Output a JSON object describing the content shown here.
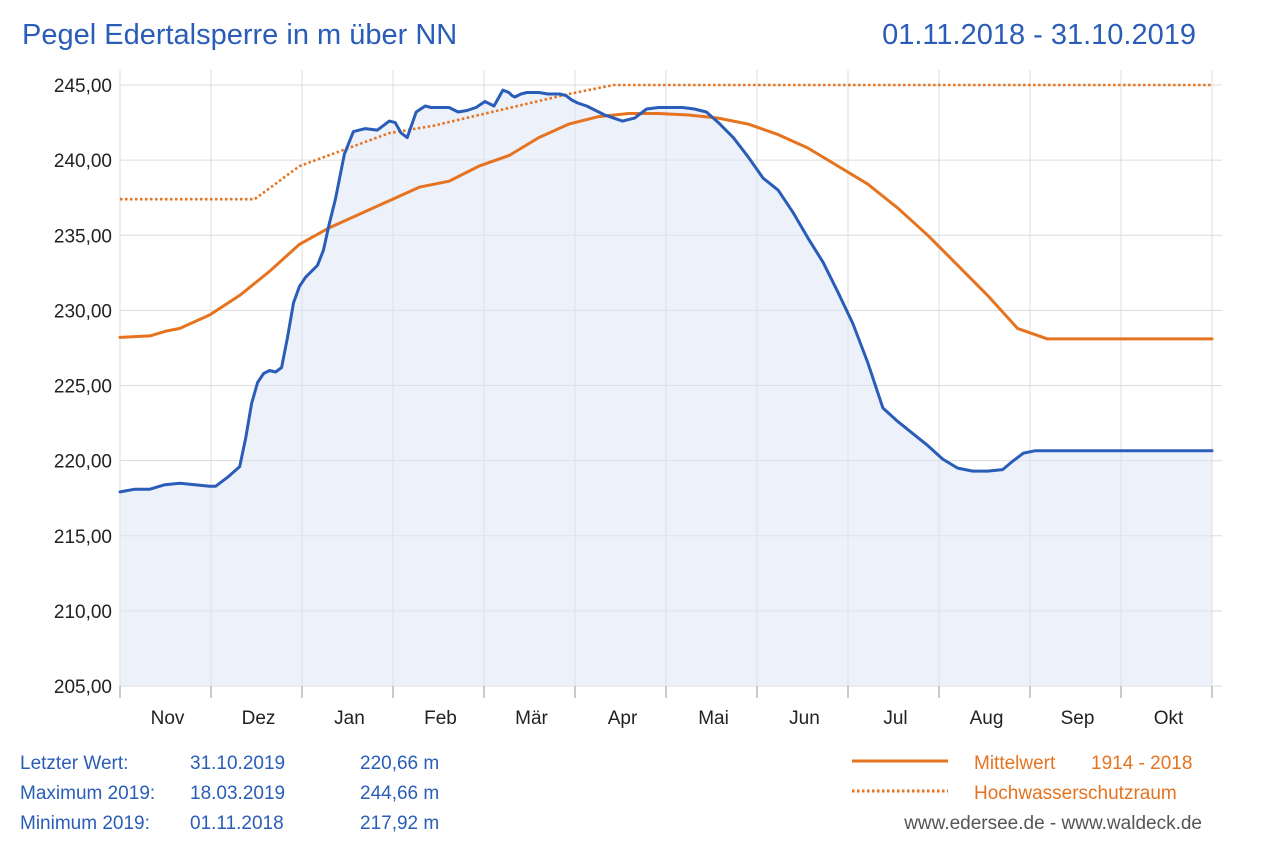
{
  "header": {
    "title": "Pegel Edertalsperre in m über NN",
    "date_range": "01.11.2018 - 31.10.2019"
  },
  "chart_data": {
    "type": "line",
    "title": "Pegel Edertalsperre in m über NN",
    "period": "01.11.2018 - 31.10.2019",
    "xlabel": "",
    "ylabel": "",
    "x_unit": "day of hydrological year (0 = 01.11.2018)",
    "ylim": [
      205,
      245
    ],
    "yticks": [
      "205,00",
      "210,00",
      "215,00",
      "220,00",
      "225,00",
      "230,00",
      "235,00",
      "240,00",
      "245,00"
    ],
    "ytick_values": [
      205,
      210,
      215,
      220,
      225,
      230,
      235,
      240,
      245
    ],
    "months": [
      "Nov",
      "Dez",
      "Jan",
      "Feb",
      "Mär",
      "Apr",
      "Mai",
      "Jun",
      "Jul",
      "Aug",
      "Sep",
      "Okt"
    ],
    "grid": true,
    "legend_position": "bottom-right",
    "colors": {
      "pegel": "#2a5db8",
      "mittelwert": "#e5731f",
      "hochwasser": "#e5731f",
      "fill": "#dfe6f5",
      "grid": "#dcdcdc"
    },
    "series": [
      {
        "key": "pegel",
        "style": "solid",
        "x": [
          0,
          5,
          10,
          15,
          20,
          25,
          30,
          32,
          36,
          40,
          42,
          44,
          46,
          48,
          50,
          52,
          54,
          56,
          58,
          60,
          62,
          64,
          66,
          68,
          70,
          72,
          75,
          78,
          82,
          86,
          90,
          92,
          94,
          96,
          99,
          102,
          104,
          106,
          108,
          110,
          113,
          116,
          119,
          122,
          125,
          128,
          130,
          131,
          132,
          134,
          136,
          138,
          140,
          143,
          145,
          147,
          149,
          151,
          153,
          156,
          159,
          162,
          165,
          168,
          172,
          176,
          180,
          184,
          188,
          192,
          196,
          200,
          205,
          210,
          215,
          220,
          225,
          230,
          235,
          240,
          245,
          250,
          255,
          260,
          265,
          270,
          275,
          280,
          285,
          290,
          295,
          298,
          302,
          306,
          310,
          315,
          320,
          325,
          330,
          335,
          340,
          345,
          350,
          355,
          360,
          365
        ],
        "y": [
          217.92,
          218.1,
          218.1,
          218.4,
          218.5,
          218.4,
          218.3,
          218.3,
          218.9,
          219.6,
          221.5,
          223.8,
          225.2,
          225.8,
          226.0,
          225.9,
          226.2,
          228.2,
          230.5,
          231.6,
          232.2,
          232.6,
          233.0,
          234.0,
          235.8,
          237.4,
          240.4,
          241.9,
          242.1,
          242.0,
          242.6,
          242.5,
          241.8,
          241.5,
          243.2,
          243.6,
          243.5,
          243.5,
          243.5,
          243.5,
          243.2,
          243.3,
          243.5,
          243.9,
          243.6,
          244.66,
          244.5,
          244.3,
          244.2,
          244.4,
          244.5,
          244.5,
          244.5,
          244.4,
          244.4,
          244.4,
          244.3,
          244.0,
          243.8,
          243.6,
          243.3,
          243.0,
          242.8,
          242.6,
          242.8,
          243.4,
          243.5,
          243.5,
          243.5,
          243.4,
          243.2,
          242.5,
          241.5,
          240.2,
          238.8,
          238.0,
          236.5,
          234.8,
          233.2,
          231.2,
          229.1,
          226.5,
          223.5,
          222.6,
          221.8,
          221.0,
          220.1,
          219.5,
          219.3,
          219.3,
          219.4,
          219.9,
          220.5,
          220.66,
          220.66,
          220.66,
          220.66,
          220.66,
          220.66,
          220.66,
          220.66,
          220.66,
          220.66,
          220.66,
          220.66,
          220.66
        ]
      },
      {
        "key": "mittelwert",
        "style": "solid",
        "x": [
          0,
          10,
          15,
          20,
          30,
          40,
          50,
          60,
          70,
          80,
          90,
          100,
          110,
          120,
          130,
          140,
          150,
          160,
          170,
          180,
          190,
          200,
          210,
          220,
          230,
          240,
          250,
          260,
          270,
          280,
          290,
          300,
          310,
          320,
          330,
          340,
          350,
          360,
          365
        ],
        "y": [
          228.2,
          228.3,
          228.6,
          228.8,
          229.7,
          231.0,
          232.6,
          234.4,
          235.5,
          236.4,
          237.3,
          238.2,
          238.6,
          239.6,
          240.3,
          241.5,
          242.4,
          242.9,
          243.1,
          243.1,
          243.0,
          242.8,
          242.4,
          241.7,
          240.8,
          239.6,
          238.4,
          236.8,
          235.0,
          233.0,
          231.0,
          228.8,
          228.1,
          228.1,
          228.1,
          228.1,
          228.1,
          228.1,
          228.1
        ]
      },
      {
        "key": "hochwasser",
        "style": "dotted",
        "x": [
          0,
          45,
          60,
          90,
          105,
          120,
          135,
          150,
          165,
          180,
          195,
          210,
          225,
          240,
          255,
          270,
          285,
          300,
          315,
          330,
          345,
          365
        ],
        "y": [
          237.4,
          237.4,
          239.6,
          241.8,
          242.3,
          243.0,
          243.7,
          244.4,
          245.0,
          245.0,
          245.0,
          245.0,
          245.0,
          245.0,
          245.0,
          245.0,
          245.0,
          245.0,
          245.0,
          245.0,
          245.0,
          245.0
        ]
      }
    ]
  },
  "info": {
    "rows": [
      {
        "label": "Letzter  Wert:",
        "date": "31.10.2019",
        "value": "220,66 m"
      },
      {
        "label": "Maximum 2019:",
        "date": "18.03.2019",
        "value": "244,66 m"
      },
      {
        "label": "Minimum  2019:",
        "date": "01.11.2018",
        "value": "217,92 m"
      }
    ]
  },
  "legend": {
    "mittelwert_label": "Mittelwert",
    "mittelwert_period": "1914 - 2018",
    "hochwasser_label": "Hochwasserschutzraum"
  },
  "credit": "www.edersee.de  -  www.waldeck.de"
}
